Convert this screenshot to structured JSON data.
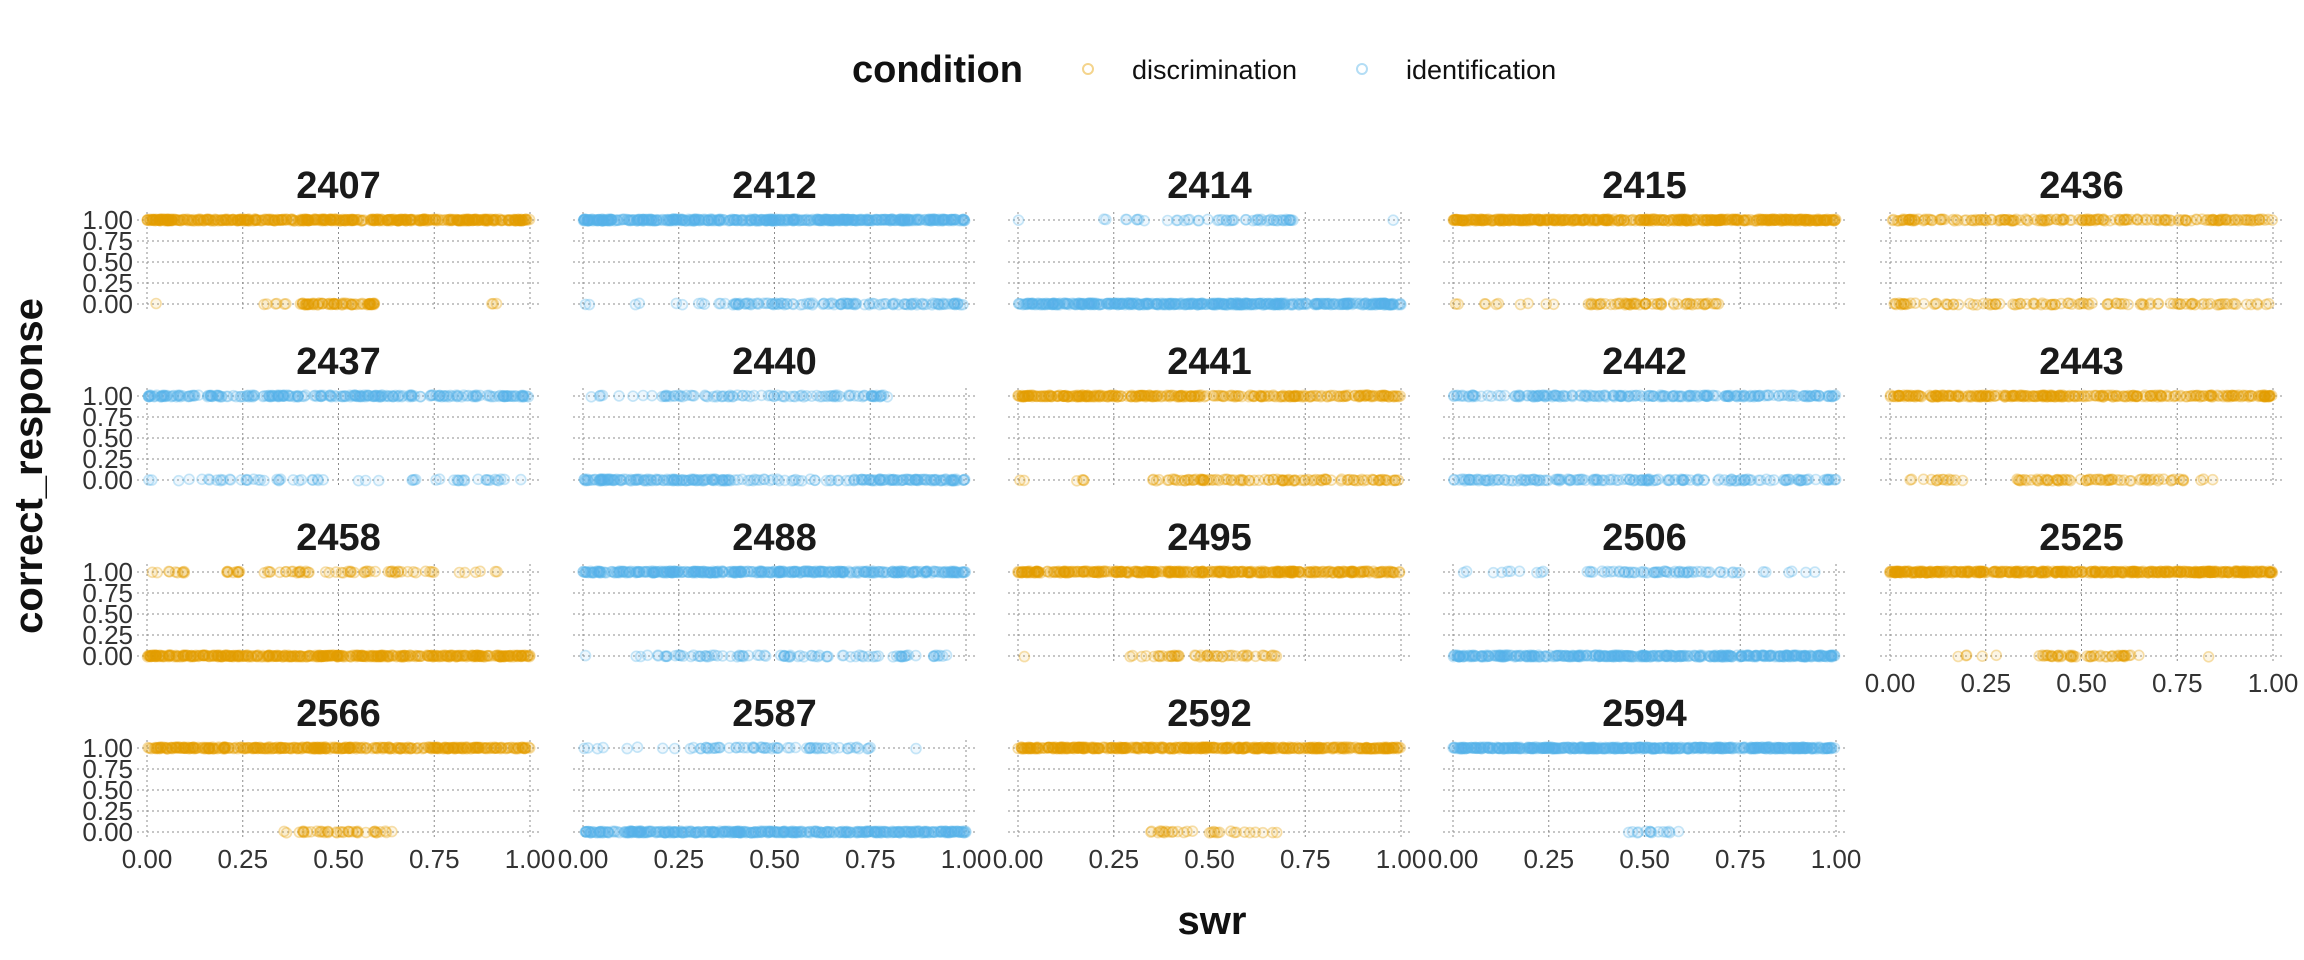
{
  "chart_data": {
    "type": "scatter",
    "facet_type": "wrap",
    "ncol": 5,
    "xlabel": "swr",
    "ylabel": "correct_response",
    "xlim": [
      0,
      1
    ],
    "ylim": [
      0,
      1
    ],
    "x_ticks": [
      0,
      0.25,
      0.5,
      0.75,
      1
    ],
    "x_tick_labels": [
      "0.00",
      "0.25",
      "0.50",
      "0.75",
      "1.00"
    ],
    "y_ticks": [
      0,
      0.25,
      0.5,
      0.75,
      1
    ],
    "y_tick_labels": [
      "0.00",
      "0.25",
      "0.50",
      "0.75",
      "1.00"
    ],
    "grid": true,
    "grid_style": "dotted",
    "legend": {
      "title": "condition",
      "position": "top",
      "entries": [
        {
          "label": "discrimination",
          "color": "#E69F00"
        },
        {
          "label": "identification",
          "color": "#56B4E9"
        }
      ]
    },
    "point_alpha": 0.3,
    "point_shape": "open-circle",
    "panels": [
      {
        "label": "2407",
        "condition": "discrimination",
        "y1": [
          [
            0.0,
            0.08,
            60
          ],
          [
            0.08,
            0.65,
            260
          ],
          [
            0.65,
            1.0,
            180
          ]
        ],
        "y0": [
          [
            0.02,
            0.03,
            1
          ],
          [
            0.28,
            0.38,
            6
          ],
          [
            0.4,
            0.6,
            70
          ],
          [
            0.9,
            0.93,
            3
          ]
        ]
      },
      {
        "label": "2412",
        "condition": "identification",
        "y1": [
          [
            0.0,
            0.08,
            60
          ],
          [
            0.08,
            0.65,
            260
          ],
          [
            0.65,
            1.0,
            180
          ]
        ],
        "y0": [
          [
            0.0,
            0.02,
            2
          ],
          [
            0.13,
            0.15,
            2
          ],
          [
            0.23,
            0.35,
            5
          ],
          [
            0.35,
            1.0,
            120
          ]
        ]
      },
      {
        "label": "2414",
        "condition": "identification",
        "y1": [
          [
            0.0,
            0.02,
            1
          ],
          [
            0.2,
            0.25,
            2
          ],
          [
            0.27,
            0.72,
            50
          ],
          [
            0.97,
            0.99,
            1
          ]
        ],
        "y0": [
          [
            0.0,
            1.0,
            450
          ]
        ]
      },
      {
        "label": "2415",
        "condition": "discrimination",
        "y1": [
          [
            0.0,
            1.0,
            480
          ]
        ],
        "y0": [
          [
            0.0,
            0.03,
            2
          ],
          [
            0.06,
            0.35,
            8
          ],
          [
            0.35,
            0.7,
            60
          ]
        ]
      },
      {
        "label": "2436",
        "condition": "discrimination",
        "y1": [
          [
            0.0,
            1.0,
            200
          ]
        ],
        "y0": [
          [
            0.0,
            1.0,
            110
          ]
        ]
      },
      {
        "label": "2437",
        "condition": "identification",
        "y1": [
          [
            0.0,
            1.0,
            260
          ]
        ],
        "y0": [
          [
            0.0,
            1.0,
            60
          ]
        ]
      },
      {
        "label": "2440",
        "condition": "identification",
        "y1": [
          [
            0.0,
            0.2,
            8
          ],
          [
            0.2,
            0.8,
            90
          ]
        ],
        "y0": [
          [
            0.0,
            0.4,
            130
          ],
          [
            0.4,
            0.7,
            30
          ],
          [
            0.7,
            1.0,
            90
          ]
        ]
      },
      {
        "label": "2441",
        "condition": "discrimination",
        "y1": [
          [
            0.0,
            0.5,
            180
          ],
          [
            0.5,
            1.0,
            120
          ]
        ],
        "y0": [
          [
            0.0,
            0.02,
            2
          ],
          [
            0.12,
            0.18,
            4
          ],
          [
            0.35,
            1.0,
            110
          ]
        ]
      },
      {
        "label": "2442",
        "condition": "identification",
        "y1": [
          [
            0.0,
            1.0,
            220
          ]
        ],
        "y0": [
          [
            0.0,
            1.0,
            180
          ]
        ]
      },
      {
        "label": "2443",
        "condition": "discrimination",
        "y1": [
          [
            0.0,
            1.0,
            300
          ]
        ],
        "y0": [
          [
            0.05,
            0.2,
            14
          ],
          [
            0.33,
            0.78,
            70
          ],
          [
            0.8,
            0.87,
            3
          ]
        ]
      },
      {
        "label": "2458",
        "condition": "discrimination",
        "y1": [
          [
            0.0,
            0.1,
            10
          ],
          [
            0.2,
            0.75,
            60
          ],
          [
            0.8,
            0.92,
            6
          ]
        ],
        "y0": [
          [
            0.0,
            1.0,
            450
          ]
        ]
      },
      {
        "label": "2488",
        "condition": "identification",
        "y1": [
          [
            0.0,
            1.0,
            400
          ]
        ],
        "y0": [
          [
            0.0,
            0.02,
            1
          ],
          [
            0.13,
            0.95,
            90
          ]
        ]
      },
      {
        "label": "2495",
        "condition": "discrimination",
        "y1": [
          [
            0.0,
            1.0,
            400
          ]
        ],
        "y0": [
          [
            0.0,
            0.02,
            1
          ],
          [
            0.28,
            0.68,
            50
          ]
        ]
      },
      {
        "label": "2506",
        "condition": "identification",
        "y1": [
          [
            0.0,
            0.3,
            10
          ],
          [
            0.35,
            0.75,
            60
          ],
          [
            0.8,
            0.95,
            6
          ]
        ],
        "y0": [
          [
            0.0,
            1.0,
            420
          ]
        ]
      },
      {
        "label": "2525",
        "condition": "discrimination",
        "y1": [
          [
            0.0,
            1.0,
            500
          ]
        ],
        "y0": [
          [
            0.1,
            0.35,
            5
          ],
          [
            0.38,
            0.65,
            50
          ],
          [
            0.82,
            0.84,
            1
          ]
        ]
      },
      {
        "label": "2566",
        "condition": "discrimination",
        "y1": [
          [
            0.0,
            1.0,
            400
          ]
        ],
        "y0": [
          [
            0.35,
            0.65,
            40
          ]
        ]
      },
      {
        "label": "2587",
        "condition": "identification",
        "y1": [
          [
            0.0,
            0.3,
            10
          ],
          [
            0.3,
            0.75,
            60
          ],
          [
            0.85,
            0.87,
            1
          ]
        ],
        "y0": [
          [
            0.0,
            1.0,
            420
          ]
        ]
      },
      {
        "label": "2592",
        "condition": "discrimination",
        "y1": [
          [
            0.0,
            1.0,
            450
          ]
        ],
        "y0": [
          [
            0.33,
            0.68,
            30
          ]
        ]
      },
      {
        "label": "2594",
        "condition": "identification",
        "y1": [
          [
            0.0,
            1.0,
            520
          ]
        ],
        "y0": [
          [
            0.45,
            0.6,
            15
          ]
        ]
      }
    ]
  }
}
